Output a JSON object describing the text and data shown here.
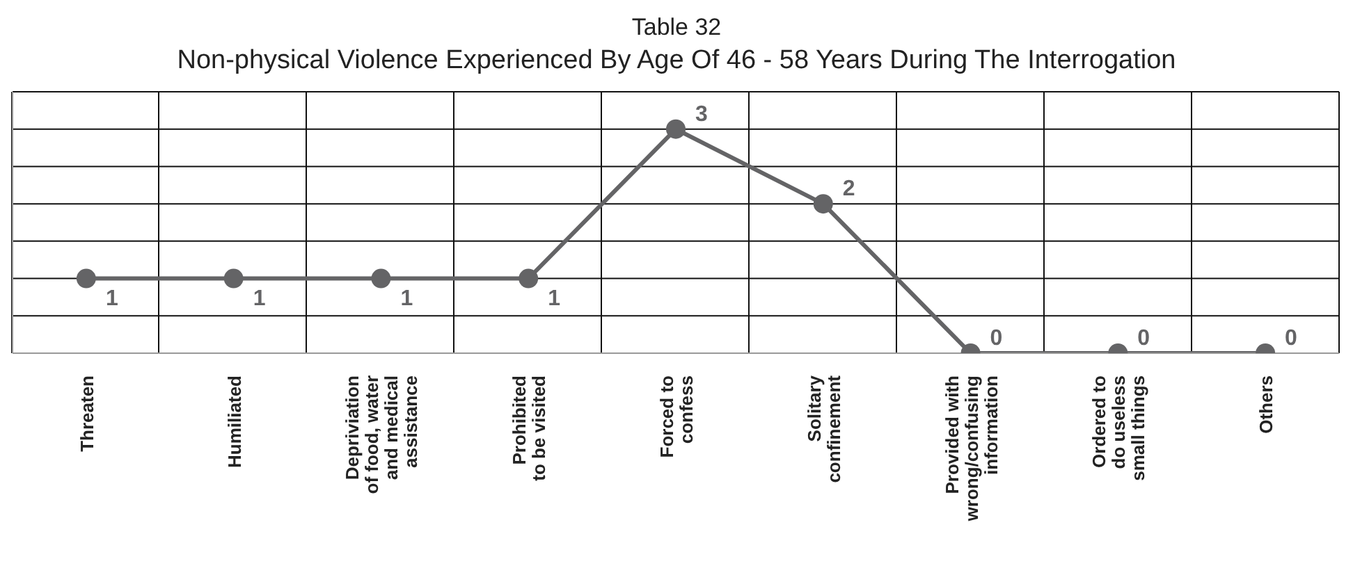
{
  "chart_data": {
    "type": "line",
    "title": "Table 32",
    "subtitle": "Non-physical Violence Experienced By Age Of 46 - 58 Years During The Interrogation",
    "categories": [
      "Threaten",
      "Humiliated",
      "Depriviation\nof food, water\nand medical\nassistance",
      "Prohibited\nto be visited",
      "Forced to\nconfess",
      "Solitary\nconfinement",
      "Provided with\nwrong/confusing\ninformation",
      "Ordered to\ndo useless\nsmall things",
      "Others"
    ],
    "series": [
      {
        "color": "#646466",
        "values": [
          1,
          1,
          1,
          1,
          3,
          2,
          0,
          0,
          0
        ]
      }
    ],
    "ylim": [
      0,
      3.5
    ],
    "yticks": [
      {
        "value": 0,
        "label": null
      },
      {
        "value": 0.5,
        "label": null
      },
      {
        "value": 1,
        "label": null
      },
      {
        "value": 1.5,
        "label": null
      },
      {
        "value": 2,
        "label": null
      },
      {
        "value": 2.5,
        "label": null
      },
      {
        "value": 3,
        "label": null
      },
      {
        "value": 3.5,
        "label": null
      }
    ],
    "tick_labels": "x",
    "grid": true,
    "marker": "circle",
    "line_style": "solid",
    "data_labels": true,
    "legend": false
  }
}
